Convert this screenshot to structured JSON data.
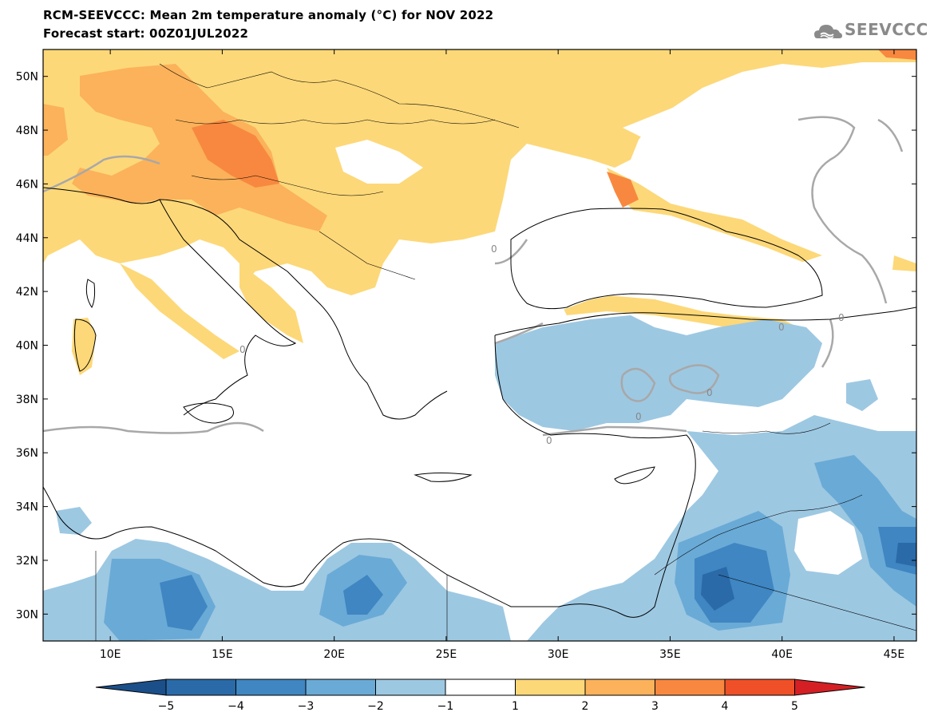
{
  "header": {
    "title": "RCM-SEEVCCC: Mean 2m temperature anomaly (°C) for NOV 2022",
    "subtitle": "Forecast start: 00Z01JUL2022",
    "logo_text": "SEEVCCC"
  },
  "map": {
    "lon_range": [
      7,
      46
    ],
    "lat_range": [
      29,
      51
    ],
    "lon_ticks": [
      "10E",
      "15E",
      "20E",
      "25E",
      "30E",
      "35E",
      "40E",
      "45E"
    ],
    "lat_ticks": [
      "50N",
      "48N",
      "46N",
      "44N",
      "42N",
      "40N",
      "38N",
      "36N",
      "34N",
      "32N",
      "30N"
    ],
    "contour_label": "0"
  },
  "colorbar": {
    "labels": [
      "−5",
      "−4",
      "−3",
      "−2",
      "−1",
      "1",
      "2",
      "3",
      "4",
      "5"
    ],
    "colors": {
      "below_min": "#1b4f8a",
      "bins": [
        "#2a6aa8",
        "#3f86c2",
        "#6aaad6",
        "#9dc8e2",
        "#ffffff",
        "#fdd878",
        "#fbb25a",
        "#f8883f",
        "#ef5028"
      ],
      "above_max": "#d42024"
    }
  },
  "colors": {
    "warm1": "#fdd878",
    "warm2": "#fbb25a",
    "warm3": "#f8883f",
    "cool1": "#9dc8e2",
    "cool2": "#6aaad6",
    "cool3": "#3f86c2",
    "cool4": "#2a6aa8",
    "contour": "#a8a8a8"
  }
}
